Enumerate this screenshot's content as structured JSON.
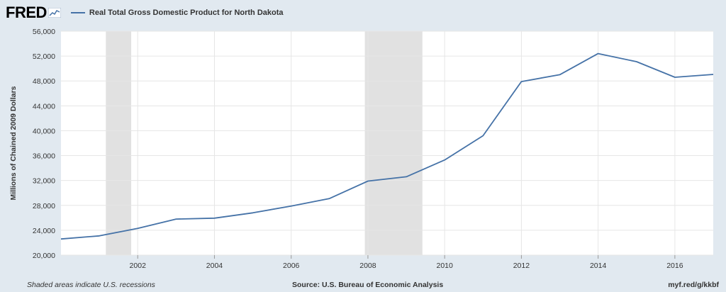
{
  "logo": {
    "text": "FRED"
  },
  "colors": {
    "background": "#e1e9f0",
    "plot_bg": "#ffffff",
    "series": "#4572a7",
    "recession": "#e1e1e1",
    "grid": "#e6e6e6"
  },
  "footer": {
    "left": "Shaded areas indicate U.S. recessions",
    "center": "Source: U.S. Bureau of Economic Analysis",
    "right": "myf.red/g/kkbf"
  },
  "chart_data": {
    "type": "line",
    "title": "",
    "xlabel": "",
    "ylabel": "Millions of Chained 2009 Dollars",
    "series": [
      {
        "name": "Real Total Gross Domestic Product for North Dakota",
        "x": [
          2000,
          2001,
          2002,
          2003,
          2004,
          2005,
          2006,
          2007,
          2008,
          2009,
          2010,
          2011,
          2012,
          2013,
          2014,
          2015,
          2016,
          2017
        ],
        "values": [
          22600,
          23100,
          24300,
          25800,
          25950,
          26800,
          27900,
          29100,
          31900,
          32600,
          35300,
          39200,
          47900,
          49000,
          52400,
          51100,
          48600,
          49050
        ]
      }
    ],
    "recessions": [
      [
        2001.17,
        2001.83
      ],
      [
        2007.92,
        2009.42
      ]
    ],
    "xlim": [
      2000,
      2017
    ],
    "ylim": [
      20000,
      56000
    ],
    "x_ticks": [
      "2002",
      "2004",
      "2006",
      "2008",
      "2010",
      "2012",
      "2014",
      "2016"
    ],
    "y_ticks": [
      "20,000",
      "24,000",
      "28,000",
      "32,000",
      "36,000",
      "40,000",
      "44,000",
      "48,000",
      "52,000",
      "56,000"
    ],
    "grid": true,
    "legend_position": "top-left"
  }
}
